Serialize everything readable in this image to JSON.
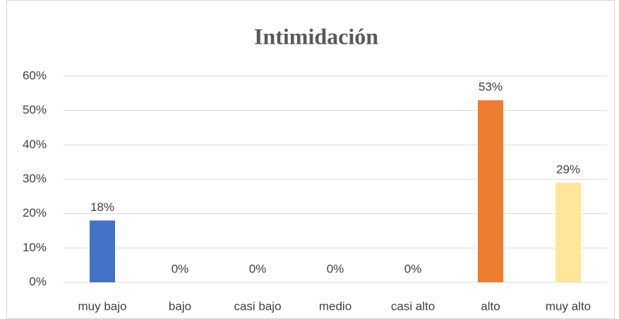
{
  "chart_data": {
    "type": "bar",
    "title": "Intimidación",
    "categories": [
      "muy bajo",
      "bajo",
      "casi bajo",
      "medio",
      "casi alto",
      "alto",
      "muy alto"
    ],
    "values": [
      18,
      0,
      0,
      0,
      0,
      53,
      29
    ],
    "value_labels": [
      "18%",
      "0%",
      "0%",
      "0%",
      "0%",
      "53%",
      "29%"
    ],
    "colors": [
      "#4472c4",
      "#a5a5a5",
      "#ffc000",
      "#5b9bd5",
      "#70ad47",
      "#ed7d31",
      "#ffe699"
    ],
    "ylim": [
      0,
      60
    ],
    "yticks": [
      {
        "value": 0,
        "label": "0%"
      },
      {
        "value": 10,
        "label": "10%"
      },
      {
        "value": 20,
        "label": "20%"
      },
      {
        "value": 30,
        "label": "30%"
      },
      {
        "value": 40,
        "label": "40%"
      },
      {
        "value": 50,
        "label": "50%"
      },
      {
        "value": 60,
        "label": "60%"
      }
    ],
    "grid": true
  }
}
